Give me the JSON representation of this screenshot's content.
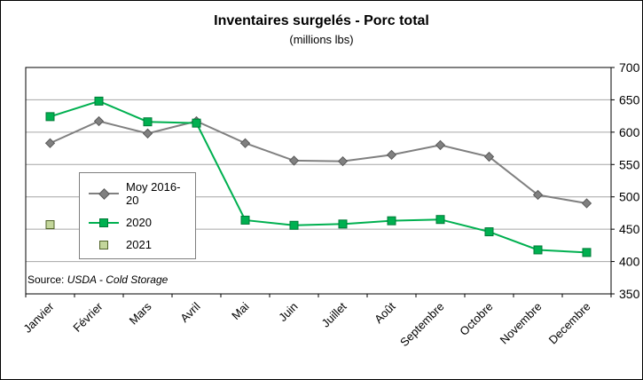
{
  "title": "Inventaires surgelés - Porc total",
  "subtitle": "(millions lbs)",
  "source": {
    "prefix": "Source: ",
    "text": "USDA - Cold Storage"
  },
  "chart_data": {
    "type": "line",
    "categories": [
      "Janvier",
      "Février",
      "Mars",
      "Avril",
      "Mai",
      "Juin",
      "Juillet",
      "Août",
      "Septembre",
      "Octobre",
      "Novembre",
      "Decembre"
    ],
    "series": [
      {
        "name": "Moy 2016-20",
        "color": "#808080",
        "marker": "diamond",
        "marker_fill": "#808080",
        "marker_stroke": "#595959",
        "values": [
          583,
          617,
          598,
          617,
          583,
          556,
          555,
          565,
          580,
          562,
          503,
          490
        ]
      },
      {
        "name": "2020",
        "color": "#00b050",
        "marker": "square",
        "marker_fill": "#00b050",
        "marker_stroke": "#007a37",
        "values": [
          624,
          648,
          616,
          614,
          464,
          456,
          458,
          463,
          465,
          446,
          418,
          414
        ]
      },
      {
        "name": "2021",
        "color": "#92d050",
        "marker": "square",
        "marker_fill": "#c3d69b",
        "marker_stroke": "#4f6228",
        "line": false,
        "values": [
          457,
          null,
          null,
          null,
          null,
          null,
          null,
          null,
          null,
          null,
          null,
          null
        ]
      }
    ],
    "ylim": [
      350,
      700
    ],
    "ytick_step": 50,
    "yticks": [
      350,
      400,
      450,
      500,
      550,
      600,
      650,
      700
    ],
    "grid": true,
    "legend_position": "left-middle",
    "gridline_color": "#a6a6a6"
  }
}
